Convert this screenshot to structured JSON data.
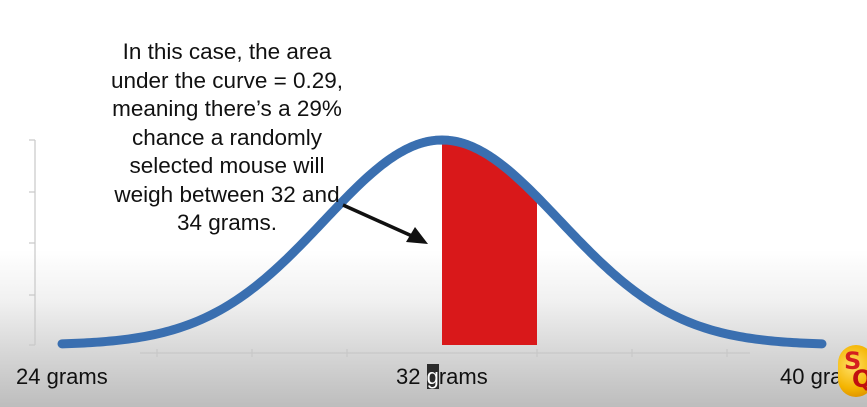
{
  "annotation": {
    "lines": [
      "In this case, the area",
      "under the curve = 0.29,",
      "meaning there’s a 29%",
      "chance a randomly",
      "selected mouse will",
      "weigh between 32 and",
      "34 grams."
    ]
  },
  "chart_data": {
    "type": "area",
    "distribution": "normal",
    "mean": 32,
    "xlim": [
      24,
      40
    ],
    "shaded_range": [
      32,
      34
    ],
    "shaded_area": 0.29,
    "tick_labels": [
      {
        "value": 24,
        "label": "24 grams"
      },
      {
        "value": 32,
        "label": "32 ",
        "label_highlight": "g",
        "label_rest": "rams"
      },
      {
        "value": 40,
        "label": "40 gra"
      }
    ],
    "minor_ticks": [
      26,
      28,
      30,
      34,
      36,
      38
    ]
  },
  "colors": {
    "curve": "#3a6fb0",
    "shaded": "#d9181a",
    "axis": "#c8c8c8",
    "logo_text": "#d41f1f"
  },
  "logo": {
    "icon": "statquest-logo-icon",
    "letters": [
      "S",
      "Q"
    ]
  }
}
